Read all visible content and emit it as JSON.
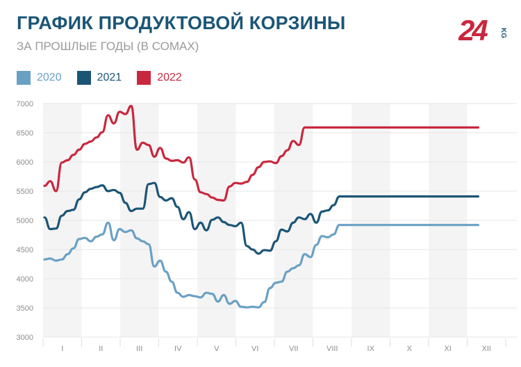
{
  "header": {
    "title": "ГРАФИК ПРОДУКТОВОЙ КОРЗИНЫ",
    "subtitle": "ЗА ПРОШЛЫЕ ГОДЫ (В СОМАХ)",
    "logo_text": "24",
    "logo_suffix": "KG"
  },
  "colors": {
    "2020": "#6aa0c4",
    "2021": "#1b5576",
    "2022": "#c8283e",
    "title": "#1b5576",
    "grid": "#e6e6e6",
    "band": "#f4f4f4"
  },
  "chart_data": {
    "type": "line",
    "categories": [
      "I",
      "II",
      "III",
      "IV",
      "V",
      "VI",
      "VII",
      "VIII",
      "IX",
      "X",
      "XI",
      "XII"
    ],
    "ylim": [
      3000,
      7000
    ],
    "yticks": [
      3000,
      3500,
      4000,
      4500,
      5000,
      5500,
      6000,
      6500,
      7000
    ],
    "grid": true,
    "legend_position": "top-left",
    "x": [
      0.0,
      0.15,
      0.3,
      0.45,
      0.6,
      0.75,
      0.9,
      1.05,
      1.2,
      1.35,
      1.5,
      1.65,
      1.8,
      1.95,
      2.1,
      2.25,
      2.4,
      2.55,
      2.7,
      2.85,
      3.0,
      3.15,
      3.3,
      3.45,
      3.6,
      3.75,
      3.9,
      4.05,
      4.2,
      4.35,
      4.5,
      4.65,
      4.8,
      4.95,
      5.1,
      5.25,
      5.4,
      5.55,
      5.7,
      5.85,
      6.0,
      6.15,
      6.3,
      6.45,
      6.6,
      6.75,
      6.9,
      7.05,
      7.2,
      7.35,
      7.5,
      7.65,
      7.8,
      7.95,
      8.1,
      8.25,
      8.4,
      8.55,
      8.7,
      8.85,
      9.0,
      9.15,
      9.3,
      9.45,
      9.6,
      9.75,
      9.9,
      10.05,
      10.2,
      10.35,
      10.5,
      10.65,
      10.8,
      10.95,
      11.1,
      11.25
    ],
    "series": [
      {
        "name": "2020",
        "values": [
          4330,
          4345,
          4310,
          4330,
          4420,
          4520,
          4680,
          4700,
          4640,
          4720,
          4760,
          4960,
          4660,
          4850,
          4800,
          4830,
          4690,
          4640,
          4590,
          4210,
          4310,
          4120,
          3950,
          3760,
          3690,
          3720,
          3700,
          3680,
          3760,
          3740,
          3610,
          3720,
          3570,
          3620,
          3520,
          3510,
          3520,
          3510,
          3600,
          3840,
          3930,
          3950,
          4120,
          4180,
          4230,
          4420,
          4370,
          4580,
          4730,
          4710,
          4760,
          4920,
          4920,
          4920,
          4920,
          4920,
          4920,
          4920,
          4920,
          4920,
          4920,
          4920,
          4920,
          4920,
          4920,
          4920,
          4920,
          4920,
          4920,
          4920,
          4920,
          4920,
          4920,
          4920,
          4920,
          4920
        ]
      },
      {
        "name": "2021",
        "values": [
          5050,
          4850,
          4860,
          5080,
          5160,
          5180,
          5360,
          5480,
          5540,
          5570,
          5600,
          5500,
          5520,
          5470,
          5300,
          5160,
          5200,
          5200,
          5620,
          5640,
          5400,
          5340,
          5380,
          5230,
          5020,
          5140,
          4850,
          4960,
          4830,
          5010,
          5050,
          4970,
          4920,
          4900,
          4960,
          4560,
          4500,
          4430,
          4490,
          4480,
          4640,
          4840,
          4810,
          4960,
          5050,
          5020,
          5110,
          4960,
          5150,
          5170,
          5260,
          5410,
          5410,
          5410,
          5410,
          5410,
          5410,
          5410,
          5410,
          5410,
          5410,
          5410,
          5410,
          5410,
          5410,
          5410,
          5410,
          5410,
          5410,
          5410,
          5410,
          5410,
          5410,
          5410,
          5410,
          5410
        ]
      },
      {
        "name": "2022",
        "values": [
          5590,
          5670,
          5500,
          5990,
          6030,
          6120,
          6210,
          6310,
          6350,
          6420,
          6510,
          6800,
          6660,
          6860,
          6820,
          6960,
          6210,
          6330,
          6290,
          6090,
          6240,
          6060,
          6020,
          6030,
          5990,
          6080,
          5700,
          5480,
          5450,
          5390,
          5350,
          5340,
          5580,
          5640,
          5630,
          5660,
          5780,
          5910,
          6000,
          6010,
          5980,
          6100,
          6200,
          6360,
          6290,
          6590,
          6590,
          6590,
          6590,
          6590,
          6590,
          6590,
          6590,
          6590,
          6590,
          6590,
          6590,
          6590,
          6590,
          6590,
          6590,
          6590,
          6590,
          6590,
          6590,
          6590,
          6590,
          6590,
          6590,
          6590,
          6590,
          6590,
          6590,
          6590,
          6590,
          6590
        ]
      }
    ]
  }
}
